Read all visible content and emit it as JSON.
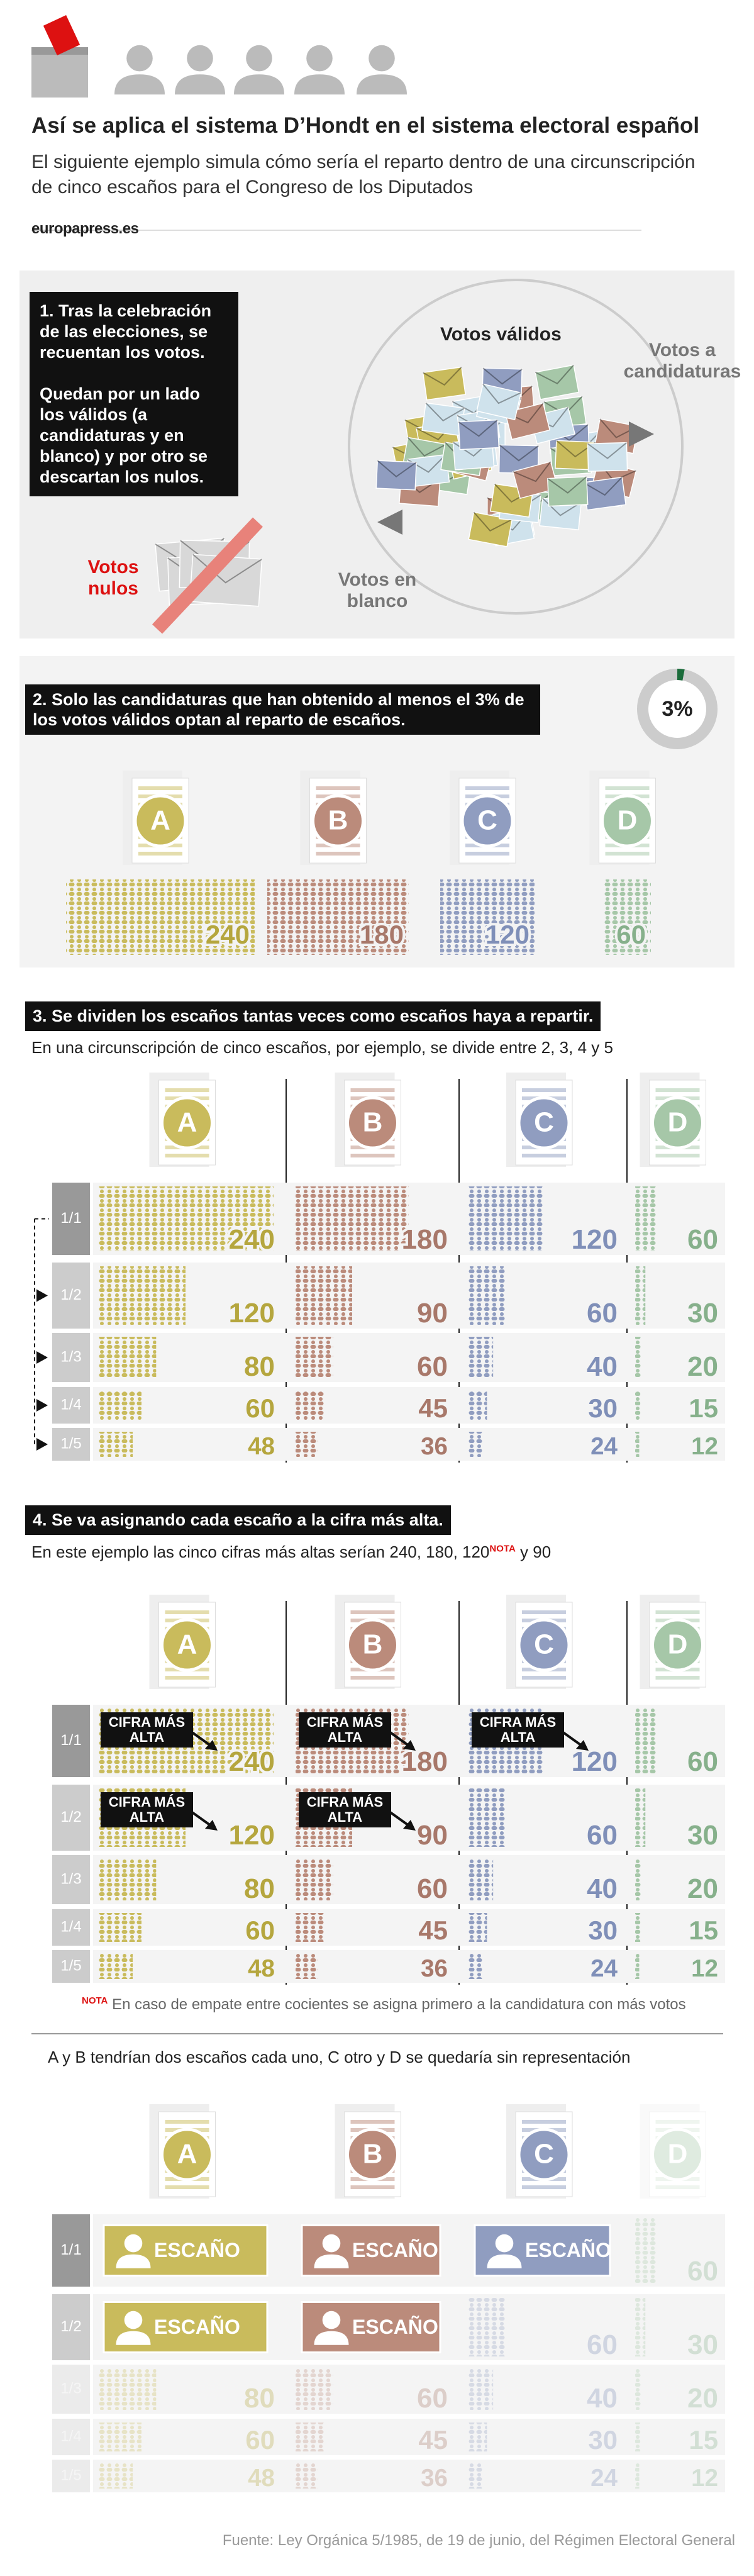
{
  "header": {
    "title": "Así se aplica el sistema D’Hondt en el sistema electoral español",
    "subtitle": "El siguiente ejemplo simula cómo sería el reparto dentro de una circunscripción de cinco escaños para el Congreso de los Diputados",
    "brand": "europapress.es"
  },
  "step1": {
    "text_1": "1. Tras la celebración de las elecciones, se recuentan los votos.",
    "text_2": "Quedan por un lado los válidos (a candidaturas y en blanco) y por otro se descartan los nulos.",
    "label_valid": "Votos válidos",
    "label_candidates": "Votos a candidaturas",
    "label_blank": "Votos en blanco",
    "label_null": "Votos nulos"
  },
  "step2": {
    "text": "2. Solo las candidaturas que han obtenido al menos el 3% de los votos válidos optan al reparto de escaños.",
    "threshold": "3%",
    "parties": [
      "A",
      "B",
      "C",
      "D"
    ],
    "colors": [
      "#c9bb5c",
      "#bb8b7b",
      "#909dc0",
      "#a6c7a8"
    ],
    "number_colors": [
      "#b5a63e",
      "#a8786a",
      "#7f8fb8",
      "#86b08b"
    ]
  },
  "step3": {
    "title": "3. Se dividen los escaños tantas veces como escaños haya a repartir.",
    "subtitle": "En una circunscripción de cinco escaños, por ejemplo, se divide entre 2, 3, 4 y 5",
    "divisors": [
      "1/1",
      "1/2",
      "1/3",
      "1/4",
      "1/5"
    ],
    "quotients": [
      [
        240,
        180,
        120,
        60
      ],
      [
        120,
        90,
        60,
        30
      ],
      [
        80,
        60,
        40,
        20
      ],
      [
        60,
        45,
        30,
        15
      ],
      [
        48,
        36,
        24,
        12
      ]
    ]
  },
  "step4": {
    "title": "4. Se va asignando cada escaño a la cifra más alta.",
    "subtitle_before": "En este ejemplo las cinco cifras más altas serían 240, 180, 120",
    "note_mark": "NOTA",
    "subtitle_after": " y 90",
    "highest_label": "CIFRA MÁS ALTA",
    "note": "En caso de empate entre cocientes se asigna primero a la candidatura con más votos",
    "conclusion": "A y B tendrían dos escaños cada uno, C otro y D se quedaría sin representación"
  },
  "result": {
    "seat_label": "ESCAÑO"
  },
  "source": "Fuente: Ley Orgánica 5/1985, de 19 de junio, del Régimen Electoral General"
}
